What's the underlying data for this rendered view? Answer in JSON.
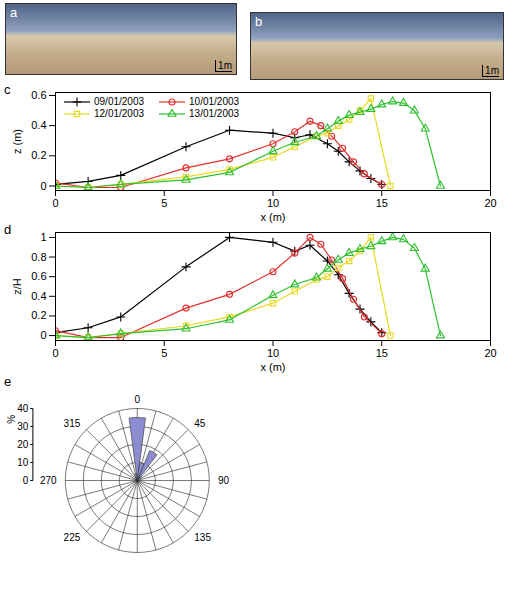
{
  "images": [
    {
      "label": "a",
      "scale_bar": "1m"
    },
    {
      "label": "b",
      "scale_bar": "1m"
    }
  ],
  "chart_data": [
    {
      "label": "c",
      "type": "line",
      "x_label": "x (m)",
      "y_label": "z (m)",
      "xlim": [
        0,
        20
      ],
      "xticks": [
        0,
        5,
        10,
        15,
        20
      ],
      "ylim": [
        -0.03,
        0.62
      ],
      "yticks": [
        0,
        0.2,
        0.4,
        0.6
      ],
      "legend": "upper left",
      "series": [
        {
          "name": "09/01/2003",
          "color": "#000000",
          "marker": "plus",
          "x": [
            0,
            1.5,
            3,
            6,
            8,
            10,
            11,
            11.7,
            12.5,
            13,
            13.5,
            14,
            14.5,
            15
          ],
          "values": [
            0.01,
            0.03,
            0.07,
            0.26,
            0.37,
            0.35,
            0.32,
            0.34,
            0.28,
            0.23,
            0.16,
            0.1,
            0.05,
            0.01
          ]
        },
        {
          "name": "10/01/2003",
          "color": "#e03030",
          "marker": "circle",
          "x": [
            0,
            1.5,
            3,
            6,
            8,
            10,
            11,
            11.7,
            12.2,
            12.7,
            13.2,
            13.7,
            14.2,
            15
          ],
          "values": [
            0.02,
            -0.01,
            -0.01,
            0.12,
            0.18,
            0.28,
            0.36,
            0.43,
            0.4,
            0.33,
            0.25,
            0.16,
            0.08,
            0.01
          ]
        },
        {
          "name": "12/01/2003",
          "color": "#e8d820",
          "marker": "square",
          "x": [
            0,
            1.5,
            3,
            6,
            8,
            10,
            11,
            12,
            12.5,
            13,
            13.5,
            14,
            14.5,
            15.4
          ],
          "values": [
            0,
            -0.01,
            0.01,
            0.06,
            0.11,
            0.19,
            0.26,
            0.33,
            0.35,
            0.4,
            0.44,
            0.5,
            0.58,
            0
          ]
        },
        {
          "name": "13/01/2003",
          "color": "#30c030",
          "marker": "triangle",
          "x": [
            0,
            1.5,
            3,
            6,
            8,
            10,
            11,
            12,
            12.5,
            13,
            13.5,
            14,
            14.5,
            15,
            15.5,
            16,
            16.5,
            17,
            17.7
          ],
          "values": [
            0,
            -0.01,
            0.01,
            0.04,
            0.09,
            0.23,
            0.29,
            0.33,
            0.38,
            0.43,
            0.47,
            0.49,
            0.51,
            0.54,
            0.56,
            0.55,
            0.5,
            0.38,
            0
          ]
        }
      ]
    },
    {
      "label": "d",
      "type": "line",
      "x_label": "x (m)",
      "y_label": "z/H",
      "xlim": [
        0,
        20
      ],
      "xticks": [
        0,
        5,
        10,
        15,
        20
      ],
      "ylim": [
        -0.05,
        1.05
      ],
      "yticks": [
        0,
        0.2,
        0.4,
        0.6,
        0.8,
        1
      ],
      "series": [
        {
          "color": "#000000",
          "marker": "plus",
          "x": [
            0,
            1.5,
            3,
            6,
            8,
            10,
            11,
            11.7,
            12.5,
            13,
            13.5,
            14,
            14.5,
            15
          ],
          "values": [
            0.03,
            0.08,
            0.19,
            0.7,
            1,
            0.95,
            0.86,
            0.92,
            0.76,
            0.62,
            0.43,
            0.27,
            0.14,
            0.03
          ]
        },
        {
          "color": "#e03030",
          "marker": "circle",
          "x": [
            0,
            1.5,
            3,
            6,
            8,
            10,
            11,
            11.7,
            12.2,
            12.7,
            13.2,
            13.7,
            14.2,
            15
          ],
          "values": [
            0.05,
            -0.02,
            -0.02,
            0.28,
            0.42,
            0.65,
            0.84,
            1,
            0.93,
            0.77,
            0.58,
            0.37,
            0.19,
            0.02
          ]
        },
        {
          "color": "#e8d820",
          "marker": "square",
          "x": [
            0,
            1.5,
            3,
            6,
            8,
            10,
            11,
            12,
            12.5,
            13,
            13.5,
            14,
            14.5,
            15.4
          ],
          "values": [
            0,
            -0.02,
            0.02,
            0.1,
            0.19,
            0.33,
            0.45,
            0.57,
            0.6,
            0.69,
            0.76,
            0.86,
            1,
            0
          ]
        },
        {
          "color": "#30c030",
          "marker": "triangle",
          "x": [
            0,
            1.5,
            3,
            6,
            8,
            10,
            11,
            12,
            12.5,
            13,
            13.5,
            14,
            14.5,
            15,
            15.5,
            16,
            16.5,
            17,
            17.7
          ],
          "values": [
            0,
            -0.02,
            0.02,
            0.07,
            0.16,
            0.41,
            0.52,
            0.59,
            0.68,
            0.77,
            0.84,
            0.88,
            0.91,
            0.96,
            1,
            0.98,
            0.89,
            0.68,
            0
          ]
        }
      ]
    },
    {
      "label": "e",
      "type": "rose",
      "y_label": "%",
      "color": "#8c8cd0",
      "directions": [
        0,
        15,
        30,
        45,
        60,
        75,
        90,
        105,
        120,
        135,
        150,
        165,
        180,
        195,
        210,
        225,
        240,
        255,
        270,
        285,
        300,
        315,
        330,
        345
      ],
      "values": [
        35,
        10,
        18,
        3,
        0,
        0,
        0,
        0,
        0,
        0,
        0,
        0,
        0,
        0,
        0,
        0,
        0,
        0,
        0,
        0,
        0,
        0,
        0,
        4
      ],
      "rlim": [
        0,
        40
      ],
      "rticks": [
        0,
        10,
        20,
        30,
        40
      ],
      "angle_ticks": [
        0,
        45,
        90,
        135,
        225,
        270,
        315
      ]
    }
  ]
}
